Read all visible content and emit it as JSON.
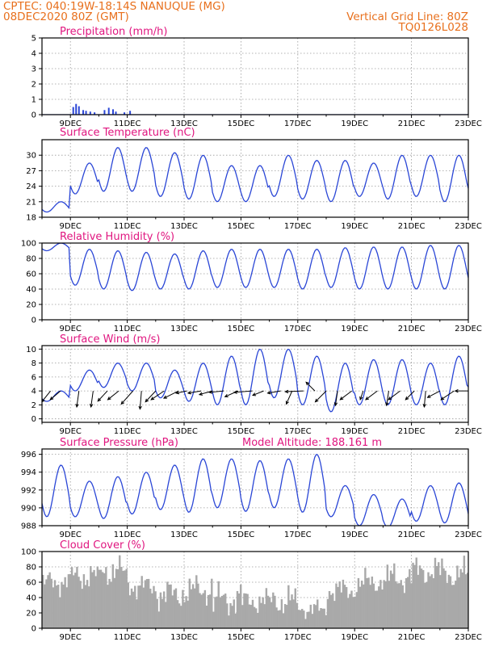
{
  "header": {
    "line1": "CPTEC:   040:19W-18:14S   NANUQUE (MG)",
    "line2": "08DEC2020 80Z (GMT)",
    "right1": "Vertical Grid Line: 80Z",
    "right2": "TQ0126L028"
  },
  "colors": {
    "series": "#2a46d6",
    "cloud": "#a9a9a9",
    "title": "#e0157f",
    "header": "#e8701d",
    "wind": "#000000"
  },
  "x_axis": {
    "start_day": 8,
    "end_day": 23,
    "tick_days": [
      9,
      11,
      13,
      15,
      17,
      19,
      21,
      23
    ],
    "tick_labels": [
      "9DEC",
      "11DEC",
      "13DEC",
      "15DEC",
      "17DEC",
      "19DEC",
      "21DEC",
      "23DEC"
    ]
  },
  "chart_data": [
    {
      "id": "precip",
      "type": "bar",
      "title": "Precipitation (mm/h)",
      "ylim": [
        0,
        5
      ],
      "yticks": [
        0,
        1,
        2,
        3,
        4,
        5
      ],
      "grid": true,
      "x": [
        9.1,
        9.2,
        9.3,
        9.45,
        9.55,
        9.7,
        9.85,
        10.2,
        10.35,
        10.5,
        10.6,
        10.9,
        11.1
      ],
      "values": [
        0.5,
        0.7,
        0.55,
        0.3,
        0.25,
        0.2,
        0.15,
        0.3,
        0.45,
        0.35,
        0.2,
        0.15,
        0.25
      ]
    },
    {
      "id": "temp",
      "type": "line",
      "title": "Surface Temperature (nC)",
      "ylim": [
        18,
        33
      ],
      "yticks": [
        18,
        21,
        24,
        27,
        30
      ],
      "grid": true,
      "daily_max": [
        21,
        28.5,
        31.5,
        31.5,
        30.5,
        30,
        28,
        28,
        30,
        29,
        29,
        28.5,
        30,
        30,
        30,
        29.5
      ],
      "daily_min": [
        19,
        22.5,
        23,
        23,
        22,
        21.5,
        21,
        21,
        22,
        21.5,
        21,
        22,
        21.5,
        22,
        21,
        21.5
      ]
    },
    {
      "id": "rh",
      "type": "line",
      "title": "Relative Humidity (%)",
      "ylim": [
        0,
        100
      ],
      "yticks": [
        0,
        20,
        40,
        60,
        80,
        100
      ],
      "grid": true,
      "daily_max": [
        100,
        92,
        90,
        88,
        86,
        90,
        92,
        92,
        92,
        92,
        94,
        95,
        95,
        97,
        97,
        97
      ],
      "daily_min": [
        90,
        45,
        40,
        38,
        40,
        40,
        42,
        42,
        42,
        40,
        42,
        40,
        40,
        40,
        40,
        40
      ]
    },
    {
      "id": "wind",
      "type": "line",
      "title": "Surface Wind (m/s)",
      "ylim": [
        -0.5,
        10.5
      ],
      "yticks": [
        0,
        2,
        4,
        6,
        8,
        10
      ],
      "grid": true,
      "daily_max": [
        4,
        7,
        8,
        8,
        7,
        8,
        9,
        10,
        10,
        9,
        8,
        8.5,
        8.5,
        8,
        9,
        9
      ],
      "daily_min": [
        2.5,
        4,
        4.5,
        4,
        3,
        2.5,
        2,
        2,
        3,
        2,
        1,
        2,
        2,
        2,
        2,
        3
      ],
      "arrows": {
        "x": [
          8.3,
          8.65,
          9.3,
          9.8,
          10.3,
          10.7,
          11.2,
          11.5,
          12,
          12.3,
          12.8,
          13.1,
          13.6,
          14,
          14.4,
          14.9,
          15.4,
          15.8,
          16.4,
          16.8,
          17.2,
          17.6,
          18,
          18.4,
          18.9,
          19.3,
          19.8,
          20.2,
          20.6,
          21.1,
          21.5,
          22,
          22.5,
          23
        ],
        "u": [
          -1.2,
          -1.4,
          -0.3,
          -0.3,
          -1.3,
          -1.5,
          -1.6,
          -0.2,
          -1.4,
          -1.8,
          -2,
          -1.5,
          -1.8,
          -1.8,
          -2,
          -1.8,
          -2.5,
          -1.5,
          -1.8,
          -0.8,
          -2.5,
          -1.2,
          -1.5,
          -0.3,
          -1.6,
          -0.4,
          -1.6,
          -0.3,
          -1.6,
          -1.2,
          -0.2,
          -1.7,
          -1.8,
          -1.8
        ],
        "v": [
          -1.5,
          -1.2,
          -2.2,
          -2.2,
          -1.4,
          -1.2,
          -1.8,
          -2.5,
          -1.5,
          -1.2,
          -1,
          -0.3,
          -0.3,
          -0.5,
          -0.2,
          -0.8,
          -0.2,
          -0.6,
          -0.3,
          -1.8,
          -0.1,
          1.2,
          -1.5,
          -2,
          -1.2,
          -1.2,
          -1.2,
          -2,
          -1.2,
          -1.2,
          -2.2,
          -0.9,
          -1.2,
          0
        ]
      }
    },
    {
      "id": "press",
      "type": "line",
      "title": "Surface Pressure (hPa)",
      "annotation": "Model Altitude: 188.161 m",
      "ylim": [
        988,
        996.6
      ],
      "yticks": [
        988,
        990,
        992,
        994,
        996
      ],
      "grid": true,
      "daily_max": [
        994.8,
        993,
        993.5,
        994,
        994.8,
        995.5,
        995.5,
        995.3,
        995.5,
        996,
        992.5,
        991.5,
        991,
        992.5,
        992.8,
        992.5
      ],
      "daily_min": [
        989,
        989,
        988.8,
        989.3,
        989.8,
        989.5,
        990,
        989.6,
        990,
        989.5,
        989,
        988,
        987.8,
        988.5,
        988.3,
        988.2
      ]
    },
    {
      "id": "cloud",
      "type": "area",
      "title": "Cloud Cover (%)",
      "ylim": [
        0,
        100
      ],
      "yticks": [
        0,
        20,
        40,
        60,
        80,
        100
      ],
      "grid": true,
      "daily_max": [
        80,
        90,
        98,
        75,
        70,
        75,
        65,
        55,
        60,
        40,
        70,
        80,
        90,
        98,
        95,
        90
      ],
      "daily_min": [
        40,
        45,
        50,
        35,
        20,
        25,
        10,
        15,
        10,
        10,
        30,
        40,
        40,
        50,
        45,
        30
      ]
    }
  ]
}
